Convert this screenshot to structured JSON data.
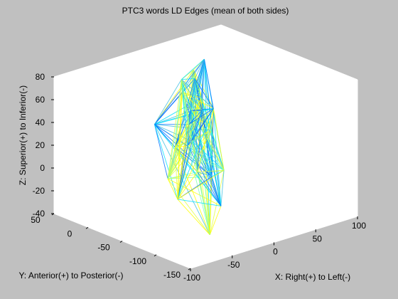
{
  "chart_data": {
    "type": "3d-line",
    "title": "PTC3 words LD Edges (mean of both sides)",
    "xlabel": "X: Right(+) to Left(-)",
    "ylabel": "Y: Anterior(+) to Posterior(-)",
    "zlabel": "Z: Superior(+) to Inferior(-)",
    "xlim": [
      -100,
      100
    ],
    "ylim": [
      -150,
      50
    ],
    "zlim": [
      -40,
      80
    ],
    "xticks": [
      "-100",
      "-50",
      "0",
      "50",
      "100"
    ],
    "yticks": [
      "-150",
      "-100",
      "-50",
      "0",
      "50"
    ],
    "zticks": [
      "-40",
      "-20",
      "0",
      "20",
      "40",
      "60",
      "80"
    ],
    "grid": false,
    "colors": [
      "#00e0ff",
      "#ffff00",
      "#40c0e0",
      "#e0ff40",
      "#0070ff",
      "#80ffb0"
    ],
    "colors_note": "cyan-to-yellow edge colormap",
    "nodes": [
      {
        "x": 10,
        "y": -20,
        "z": 78
      },
      {
        "x": 35,
        "y": -5,
        "z": 78
      },
      {
        "x": -45,
        "y": -30,
        "z": 45
      },
      {
        "x": -70,
        "y": -80,
        "z": 15
      },
      {
        "x": -40,
        "y": -105,
        "z": -35
      },
      {
        "x": 10,
        "y": -60,
        "z": -32
      },
      {
        "x": 40,
        "y": -10,
        "z": -25
      },
      {
        "x": 60,
        "y": 15,
        "z": 5
      },
      {
        "x": 60,
        "y": 30,
        "z": 30
      },
      {
        "x": 40,
        "y": 15,
        "z": 55
      },
      {
        "x": 60,
        "y": 45,
        "z": 15
      },
      {
        "x": 45,
        "y": 50,
        "z": -15
      },
      {
        "x": -20,
        "y": -40,
        "z": 70
      },
      {
        "x": 0,
        "y": -30,
        "z": 20
      },
      {
        "x": 20,
        "y": -20,
        "z": 40
      },
      {
        "x": -10,
        "y": -50,
        "z": 0
      },
      {
        "x": 30,
        "y": -40,
        "z": -10
      },
      {
        "x": 50,
        "y": 0,
        "z": 30
      },
      {
        "x": -30,
        "y": -60,
        "z": 30
      },
      {
        "x": 20,
        "y": 10,
        "z": 60
      },
      {
        "x": -50,
        "y": -70,
        "z": -10
      },
      {
        "x": 45,
        "y": 30,
        "z": 10
      }
    ]
  }
}
